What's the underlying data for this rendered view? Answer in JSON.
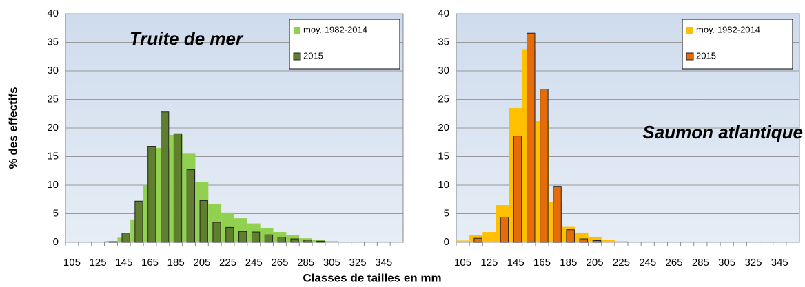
{
  "y_label": "% des effectifs",
  "x_label": "Classes de tailles en mm",
  "chart_data": [
    {
      "type": "bar",
      "title": "Truite de mer",
      "title_color": "#77a03c",
      "categories": [
        105,
        null,
        125,
        null,
        145,
        null,
        165,
        null,
        185,
        null,
        205,
        null,
        225,
        null,
        245,
        null,
        265,
        null,
        285,
        null,
        305,
        null,
        325,
        null,
        345,
        null
      ],
      "series": [
        {
          "name": "moy. 1982-2014",
          "color": "#92d050",
          "values": [
            0,
            0,
            0,
            0.2,
            0.8,
            4,
            10,
            16.5,
            18.8,
            15.5,
            10.6,
            6.7,
            5.2,
            4.2,
            3.3,
            2.5,
            1.8,
            1.2,
            0.7,
            0.4,
            0.2,
            0,
            0,
            0,
            0,
            0
          ]
        },
        {
          "name": "2015",
          "color": "#5f7f2f",
          "values": [
            0,
            0,
            0,
            0.1,
            1.6,
            7.2,
            16.8,
            22.8,
            19,
            12.7,
            7.3,
            3.5,
            2.6,
            1.9,
            1.8,
            1.3,
            0.9,
            0.6,
            0.4,
            0.2,
            0,
            0,
            0,
            0,
            0,
            0
          ]
        }
      ],
      "ylim": [
        0,
        40
      ],
      "yticks": [
        0,
        5,
        10,
        15,
        20,
        25,
        30,
        35,
        40
      ],
      "grid": true
    },
    {
      "type": "bar",
      "title": "Saumon atlantique",
      "title_color": "#e46c0a",
      "categories": [
        105,
        null,
        125,
        null,
        145,
        null,
        165,
        null,
        185,
        null,
        205,
        null,
        225,
        null,
        245,
        null,
        265,
        null,
        285,
        null,
        305,
        null,
        325,
        null,
        345,
        null
      ],
      "series": [
        {
          "name": "moy. 1982-2014",
          "color": "#ffc000",
          "values": [
            0.3,
            1.3,
            1.8,
            6.5,
            23.5,
            33.8,
            21.2,
            7,
            2.7,
            1.7,
            0.9,
            0.4,
            0.2,
            0,
            0,
            0,
            0,
            0,
            0,
            0,
            0,
            0,
            0,
            0,
            0,
            0
          ]
        },
        {
          "name": "2015",
          "color": "#e46c0a",
          "values": [
            0,
            0.7,
            0,
            4.4,
            18.6,
            36.6,
            26.8,
            9.8,
            2.2,
            0.6,
            0.3,
            0,
            0,
            0,
            0,
            0,
            0,
            0,
            0,
            0,
            0,
            0,
            0,
            0,
            0,
            0
          ]
        }
      ],
      "ylim": [
        0,
        40
      ],
      "yticks": [
        0,
        5,
        10,
        15,
        20,
        25,
        30,
        35,
        40
      ],
      "grid": true
    }
  ]
}
